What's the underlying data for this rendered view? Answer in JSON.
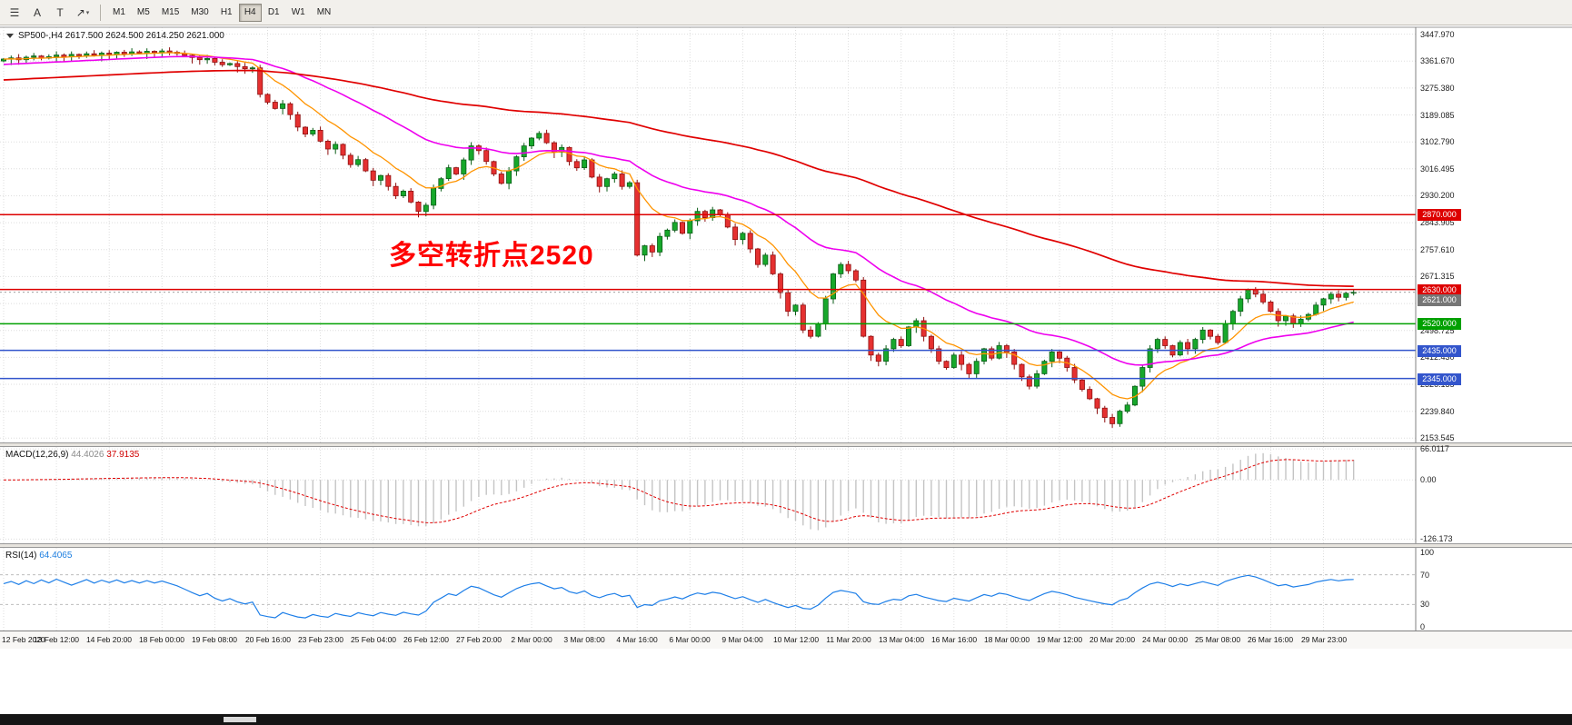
{
  "toolbar": {
    "tools": [
      {
        "name": "chart-list",
        "glyph": "☰"
      },
      {
        "name": "text-label-tool",
        "glyph": "A"
      },
      {
        "name": "text-tool",
        "glyph": "T"
      },
      {
        "name": "arrows-tool",
        "glyph": "↗",
        "caret": "▾"
      }
    ],
    "timeframes": [
      "M1",
      "M5",
      "M15",
      "M30",
      "H1",
      "H4",
      "D1",
      "W1",
      "MN"
    ],
    "active_timeframe": "H4"
  },
  "chart": {
    "symbol_ohlc": "SP500-,H4 2617.500 2624.500 2614.250 2621.000",
    "annotation": "多空转折点2520",
    "price_axis_labels": [
      "3447.970",
      "3361.670",
      "3275.380",
      "3189.085",
      "3102.790",
      "3016.495",
      "2930.200",
      "2843.905",
      "2757.610",
      "2671.315",
      "2585.020",
      "2498.725",
      "2412.430",
      "2326.135",
      "2239.840",
      "2153.545"
    ],
    "time_axis_labels": [
      "12 Feb 2020",
      "13 Feb 12:00",
      "14 Feb 20:00",
      "18 Feb 00:00",
      "19 Feb 08:00",
      "20 Feb 16:00",
      "23 Feb 23:00",
      "25 Feb 04:00",
      "26 Feb 12:00",
      "27 Feb 20:00",
      "2 Mar 00:00",
      "3 Mar 08:00",
      "4 Mar 16:00",
      "6 Mar 00:00",
      "9 Mar 04:00",
      "10 Mar 12:00",
      "11 Mar 20:00",
      "13 Mar 04:00",
      "16 Mar 16:00",
      "18 Mar 00:00",
      "19 Mar 12:00",
      "20 Mar 20:00",
      "24 Mar 00:00",
      "25 Mar 08:00",
      "26 Mar 16:00",
      "29 Mar 23:00"
    ],
    "hlines": [
      {
        "price": 2870.0,
        "label": "2870.000",
        "color": "#dd0000"
      },
      {
        "price": 2630.0,
        "label": "2630.000",
        "color": "#dd0000"
      },
      {
        "price": 2520.0,
        "label": "2520.000",
        "color": "#00a000"
      },
      {
        "price": 2435.0,
        "label": "2435.000",
        "color": "#3355cc"
      },
      {
        "price": 2345.0,
        "label": "2345.000",
        "color": "#3355cc"
      }
    ],
    "bid": {
      "price": 2621.0,
      "label": "2621.000",
      "color": "#767676"
    }
  },
  "macd": {
    "name": "MACD(12,26,9)",
    "main_value": "44.4026",
    "signal_value": "37.9135",
    "axis_labels": [
      "66.0117",
      "0.00",
      "-126.173"
    ]
  },
  "rsi": {
    "name": "RSI(14)",
    "value": "64.4065",
    "axis_labels": [
      "100",
      "70",
      "30",
      "0"
    ]
  },
  "chart_data": {
    "type": "candlestick",
    "symbol": "SP500-",
    "timeframe": "H4",
    "title": "SP500-,H4",
    "ohlc_current": {
      "open": 2617.5,
      "high": 2624.5,
      "low": 2614.25,
      "close": 2621.0
    },
    "y_range": [
      2140,
      3470
    ],
    "horizontal_levels": [
      2870,
      2630,
      2520,
      2435,
      2345
    ],
    "moving_averages": [
      {
        "name": "fast-ma",
        "period": 10,
        "color": "#ff9400"
      },
      {
        "name": "medium-ma",
        "period": 34,
        "color": "#ee00ee"
      },
      {
        "name": "slow-ma",
        "period": 120,
        "color": "#e00000"
      }
    ],
    "indicators": {
      "macd": {
        "params": [
          12,
          26,
          9
        ],
        "main": 44.4026,
        "signal": 37.9135,
        "range": [
          -126.173,
          66.0117
        ]
      },
      "rsi": {
        "period": 14,
        "value": 64.4065,
        "levels": [
          70,
          30
        ]
      }
    },
    "closes": [
      3368,
      3372,
      3366,
      3374,
      3378,
      3371,
      3376,
      3381,
      3375,
      3383,
      3379,
      3385,
      3380,
      3387,
      3383,
      3390,
      3385,
      3391,
      3387,
      3393,
      3389,
      3394,
      3390,
      3386,
      3380,
      3373,
      3366,
      3370,
      3358,
      3350,
      3354,
      3344,
      3337,
      3340,
      3255,
      3230,
      3210,
      3225,
      3190,
      3150,
      3128,
      3140,
      3105,
      3080,
      3095,
      3060,
      3030,
      3046,
      3010,
      2980,
      2995,
      2960,
      2930,
      2945,
      2910,
      2880,
      2900,
      2954,
      2985,
      3020,
      3000,
      3045,
      3090,
      3075,
      3040,
      3000,
      2970,
      3010,
      3055,
      3090,
      3115,
      3130,
      3100,
      3070,
      3085,
      3040,
      3020,
      3045,
      2990,
      2960,
      2985,
      3000,
      2960,
      2972,
      2740,
      2770,
      2750,
      2800,
      2820,
      2845,
      2810,
      2850,
      2880,
      2860,
      2885,
      2870,
      2830,
      2790,
      2810,
      2760,
      2710,
      2740,
      2680,
      2620,
      2560,
      2580,
      2500,
      2480,
      2520,
      2600,
      2680,
      2710,
      2690,
      2660,
      2480,
      2420,
      2400,
      2440,
      2470,
      2450,
      2510,
      2530,
      2480,
      2440,
      2400,
      2380,
      2420,
      2390,
      2360,
      2400,
      2440,
      2410,
      2450,
      2430,
      2390,
      2350,
      2320,
      2360,
      2400,
      2430,
      2410,
      2380,
      2340,
      2310,
      2280,
      2250,
      2220,
      2200,
      2240,
      2260,
      2320,
      2380,
      2440,
      2470,
      2450,
      2420,
      2460,
      2440,
      2470,
      2500,
      2480,
      2460,
      2520,
      2560,
      2600,
      2630,
      2615,
      2590,
      2560,
      2530,
      2545,
      2520,
      2535,
      2550,
      2580,
      2600,
      2615,
      2605,
      2618,
      2621
    ]
  }
}
